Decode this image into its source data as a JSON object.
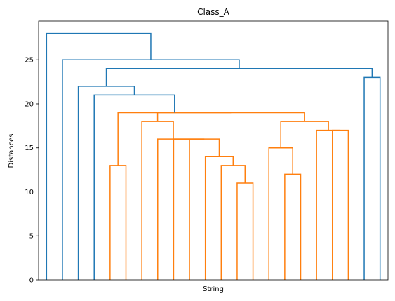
{
  "chart_data": {
    "type": "dendrogram",
    "title": "Class_A",
    "x_label": "String",
    "y_label": "Distances",
    "ylim": [
      0,
      29.4
    ],
    "yticks": [
      0,
      5,
      10,
      15,
      20,
      25
    ],
    "links": [
      {
        "left": 12,
        "right": 13,
        "height": 11,
        "color": "#ff7f0e"
      },
      {
        "left": 15,
        "right": 16,
        "height": 12,
        "color": "#ff7f0e"
      },
      {
        "left": 4,
        "right": 5,
        "height": 13,
        "color": "#ff7f0e"
      },
      {
        "left": 11,
        "right": 22,
        "height": 13,
        "color": "#ff7f0e"
      },
      {
        "left": 10,
        "right": 25,
        "height": 14,
        "color": "#ff7f0e"
      },
      {
        "left": 14,
        "right": 23,
        "height": 15,
        "color": "#ff7f0e"
      },
      {
        "left": 9,
        "right": 26,
        "height": 16,
        "color": "#ff7f0e"
      },
      {
        "left": 8,
        "right": 28,
        "height": 16,
        "color": "#ff7f0e"
      },
      {
        "left": 7,
        "right": 29,
        "height": 16,
        "color": "#ff7f0e"
      },
      {
        "left": 18,
        "right": 19,
        "height": 17,
        "color": "#ff7f0e"
      },
      {
        "left": 17,
        "right": 31,
        "height": 17,
        "color": "#ff7f0e"
      },
      {
        "left": 6,
        "right": 30,
        "height": 18,
        "color": "#ff7f0e"
      },
      {
        "left": 27,
        "right": 32,
        "height": 18,
        "color": "#ff7f0e"
      },
      {
        "left": 33,
        "right": 34,
        "height": 19,
        "color": "#ff7f0e"
      },
      {
        "left": 24,
        "right": 35,
        "height": 19,
        "color": "#ff7f0e"
      },
      {
        "left": 3,
        "right": 36,
        "height": 21,
        "color": "#1f77b4"
      },
      {
        "left": 2,
        "right": 37,
        "height": 22,
        "color": "#1f77b4"
      },
      {
        "left": 20,
        "right": 21,
        "height": 23,
        "color": "#1f77b4"
      },
      {
        "left": 38,
        "right": 39,
        "height": 24,
        "color": "#1f77b4"
      },
      {
        "left": 1,
        "right": 40,
        "height": 25,
        "color": "#1f77b4"
      },
      {
        "left": 0,
        "right": 41,
        "height": 28,
        "color": "#1f77b4"
      }
    ]
  }
}
